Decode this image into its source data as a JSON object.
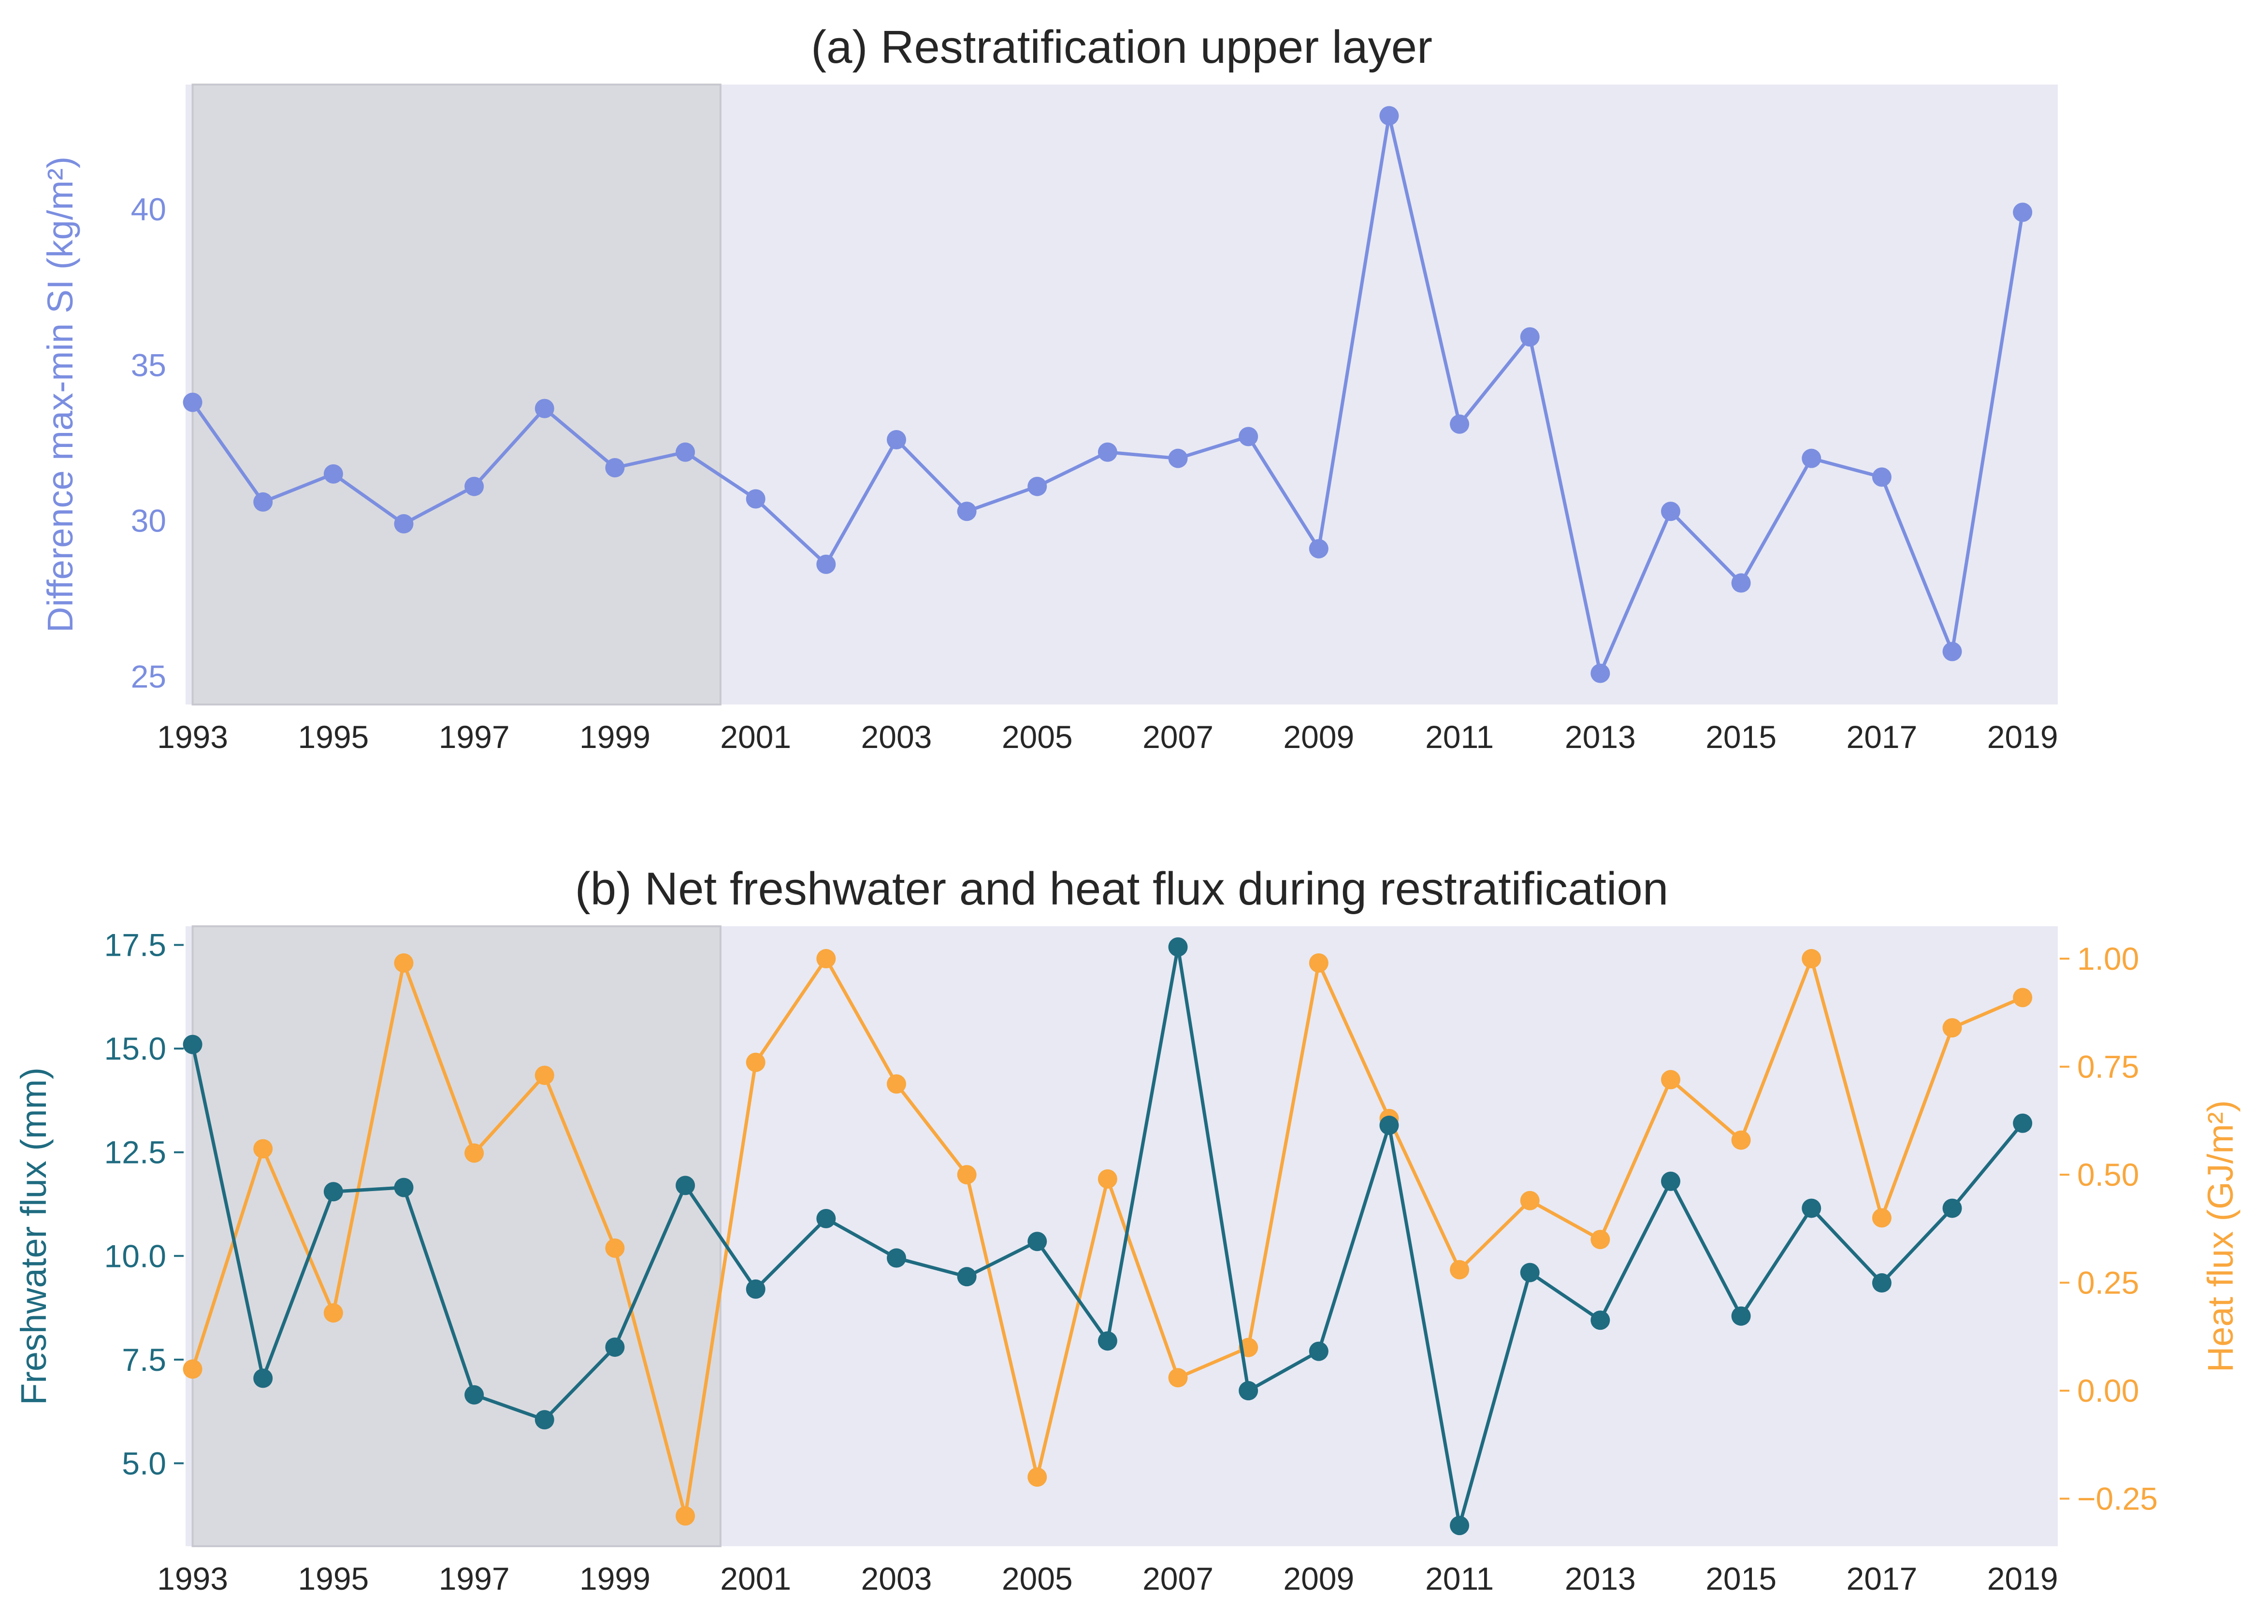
{
  "panel_a_title": "(a) Restratification upper layer",
  "panel_b_title": "(b) Net freshwater and heat flux during restratification",
  "colors": {
    "si": "#7b8ee0",
    "freshwater": "#1f6b80",
    "heat": "#f9a73e",
    "axes_bg": "#e8e9f3",
    "shade": "#d9dadf"
  },
  "chart_data": [
    {
      "type": "line",
      "title": "(a) Restratification upper layer",
      "ylabel": "Difference max-min SI (kg/m²)",
      "x": [
        1993,
        1994,
        1995,
        1996,
        1997,
        1998,
        1999,
        2000,
        2001,
        2002,
        2003,
        2004,
        2005,
        2006,
        2007,
        2008,
        2009,
        2010,
        2011,
        2012,
        2013,
        2014,
        2015,
        2016,
        2017,
        2018,
        2019
      ],
      "xticks": [
        "1993",
        "1995",
        "1997",
        "1999",
        "2001",
        "2003",
        "2005",
        "2007",
        "2009",
        "2011",
        "2013",
        "2015",
        "2017",
        "2019"
      ],
      "yticks": [
        "25",
        "30",
        "35",
        "40"
      ],
      "xlim": [
        1992.9,
        2019.5
      ],
      "ylim": [
        24.1,
        44.0
      ],
      "shaded_span": [
        1993,
        2000.5
      ],
      "grid": false,
      "series": [
        {
          "values": [
            33.8,
            30.6,
            31.5,
            29.9,
            31.1,
            33.6,
            31.7,
            32.2,
            30.7,
            28.6,
            32.6,
            30.3,
            31.1,
            32.2,
            32.0,
            32.7,
            29.1,
            43.0,
            33.1,
            35.9,
            25.1,
            30.3,
            28.0,
            32.0,
            31.4,
            25.8,
            39.9
          ]
        }
      ]
    },
    {
      "type": "line",
      "title": "(b) Net freshwater and heat flux during restratification",
      "ylabel": "Freshwater flux (mm)",
      "y2label": "Heat flux (GJ/m²)",
      "x": [
        1993,
        1994,
        1995,
        1996,
        1997,
        1998,
        1999,
        2000,
        2001,
        2002,
        2003,
        2004,
        2005,
        2006,
        2007,
        2008,
        2009,
        2010,
        2011,
        2012,
        2013,
        2014,
        2015,
        2016,
        2017,
        2018,
        2019
      ],
      "xticks": [
        "1993",
        "1995",
        "1997",
        "1999",
        "2001",
        "2003",
        "2005",
        "2007",
        "2009",
        "2011",
        "2013",
        "2015",
        "2017",
        "2019"
      ],
      "yticks": [
        "5.0",
        "7.5",
        "10.0",
        "12.5",
        "15.0",
        "17.5"
      ],
      "y2ticks": [
        "−0.25",
        "0.00",
        "0.25",
        "0.50",
        "0.75",
        "1.00"
      ],
      "xlim": [
        1992.9,
        2019.5
      ],
      "ylim": [
        3.0,
        17.95
      ],
      "y2lim": [
        -0.36,
        1.075
      ],
      "shaded_span": [
        1993,
        2000.5
      ],
      "grid": false,
      "series": [
        {
          "axis": "left",
          "values": [
            15.1,
            7.05,
            11.55,
            11.65,
            6.65,
            6.05,
            7.8,
            11.7,
            9.2,
            10.9,
            9.95,
            9.5,
            10.35,
            7.95,
            17.45,
            6.75,
            7.7,
            13.15,
            3.5,
            9.6,
            8.45,
            11.8,
            8.55,
            11.15,
            9.35,
            11.15,
            13.2
          ]
        },
        {
          "axis": "right",
          "values": [
            0.05,
            0.56,
            0.18,
            0.99,
            0.55,
            0.73,
            0.33,
            -0.29,
            0.76,
            1.0,
            0.71,
            0.5,
            -0.2,
            0.49,
            0.03,
            0.1,
            0.99,
            0.63,
            0.28,
            0.44,
            0.35,
            0.72,
            0.58,
            1.0,
            0.4,
            0.84,
            0.91
          ]
        }
      ]
    }
  ]
}
